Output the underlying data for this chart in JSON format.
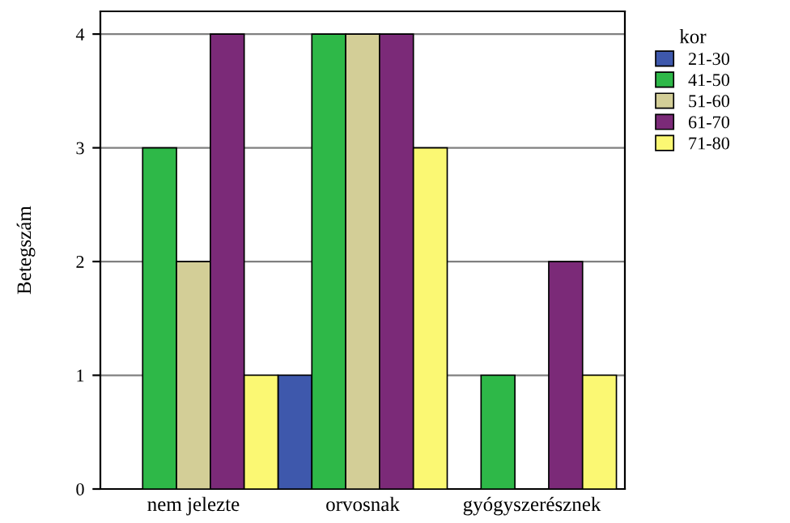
{
  "chart_data": {
    "type": "bar",
    "ylabel": "Betegszám",
    "legend_title": "kor",
    "categories": [
      "nem jelezte",
      "orvosnak",
      "gyógyszerésznek"
    ],
    "series": [
      {
        "name": "21-30",
        "color": "#3e58ac",
        "values": [
          null,
          1,
          null
        ]
      },
      {
        "name": "41-50",
        "color": "#2eb848",
        "values": [
          3,
          4,
          1
        ]
      },
      {
        "name": "51-60",
        "color": "#d3ce97",
        "values": [
          2,
          4,
          null
        ]
      },
      {
        "name": "61-70",
        "color": "#7b2a78",
        "values": [
          4,
          4,
          2
        ]
      },
      {
        "name": "71-80",
        "color": "#fbf873",
        "values": [
          1,
          3,
          1
        ]
      }
    ],
    "ylim": [
      0,
      4.2
    ],
    "yticks": [
      0,
      1,
      2,
      3,
      4
    ],
    "grid": "y",
    "legend": "top right"
  }
}
